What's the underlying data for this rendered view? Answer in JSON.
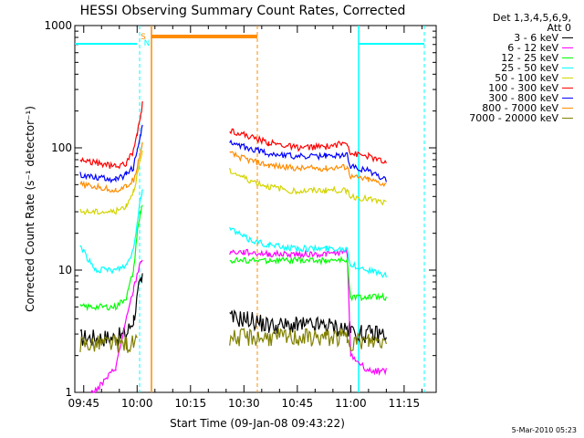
{
  "chart_data": {
    "type": "line",
    "title": "HESSI Observing Summary Count Rates, Corrected",
    "xlabel": "Start Time (09-Jan-08 09:43:22)",
    "ylabel": "Corrected Count Rate (s⁻¹ detector⁻¹)",
    "yscale": "log",
    "ylim": [
      1,
      1000
    ],
    "xlim_minutes": [
      -1,
      77
    ],
    "x_ticks": [
      {
        "label": "09:45",
        "m": 0
      },
      {
        "label": "10:00",
        "m": 15
      },
      {
        "label": "10:15",
        "m": 30
      },
      {
        "label": "10:30",
        "m": 45
      },
      {
        "label": "10:45",
        "m": 60
      },
      {
        "label": "11:00",
        "m": 75
      },
      {
        "label": "11:15",
        "m": 90
      }
    ],
    "y_ticks": [
      {
        "label": "1",
        "v": 1
      },
      {
        "label": "10",
        "v": 10
      },
      {
        "label": "100",
        "v": 100
      },
      {
        "label": "1000",
        "v": 1000
      }
    ],
    "legend_title": [
      "Det 1,3,4,5,6,9,",
      "Att 0"
    ],
    "series": [
      {
        "name": "3 - 6 keV",
        "color": "#000000",
        "points": [
          [
            -1,
            2.8
          ],
          [
            9,
            2.8
          ],
          [
            12,
            3
          ],
          [
            14,
            4
          ],
          [
            15.5,
            7
          ],
          [
            16,
            8
          ],
          [
            16.5,
            8
          ]
        ],
        "points2": [
          [
            41,
            4
          ],
          [
            46,
            4
          ],
          [
            52,
            3.5
          ],
          [
            60,
            3.5
          ],
          [
            68,
            3.5
          ],
          [
            74,
            3.3
          ],
          [
            75,
            3.2
          ],
          [
            78,
            3
          ],
          [
            85,
            3
          ]
        ]
      },
      {
        "name": "6 - 12 keV",
        "color": "#ff00ff",
        "points": [
          [
            2,
            1
          ],
          [
            3,
            1
          ],
          [
            9,
            1.6
          ],
          [
            12,
            4
          ],
          [
            14,
            7
          ],
          [
            16,
            12
          ],
          [
            16.5,
            12
          ]
        ],
        "points2": [
          [
            41,
            14
          ],
          [
            45,
            14
          ],
          [
            52,
            13.5
          ],
          [
            60,
            13.5
          ],
          [
            68,
            13.5
          ],
          [
            74,
            14
          ],
          [
            75,
            2
          ],
          [
            80,
            1.5
          ],
          [
            85,
            1.5
          ]
        ]
      },
      {
        "name": "12 - 25 keV",
        "color": "#00ff00",
        "points": [
          [
            -1,
            5
          ],
          [
            9,
            5
          ],
          [
            12,
            6
          ],
          [
            14,
            10
          ],
          [
            15,
            20
          ],
          [
            16,
            30
          ],
          [
            16.5,
            35
          ]
        ],
        "points2": [
          [
            41,
            12
          ],
          [
            46,
            12
          ],
          [
            52,
            12
          ],
          [
            60,
            12
          ],
          [
            68,
            12
          ],
          [
            74,
            12
          ],
          [
            75,
            6
          ],
          [
            80,
            6
          ],
          [
            85,
            6
          ]
        ]
      },
      {
        "name": "25 - 50 keV",
        "color": "#00ffff",
        "points": [
          [
            -1,
            16
          ],
          [
            3,
            10
          ],
          [
            9,
            10
          ],
          [
            12,
            11
          ],
          [
            14,
            15
          ],
          [
            15,
            25
          ],
          [
            16,
            40
          ],
          [
            16.5,
            45
          ]
        ],
        "points2": [
          [
            41,
            22
          ],
          [
            46,
            18
          ],
          [
            52,
            16
          ],
          [
            60,
            15
          ],
          [
            68,
            15
          ],
          [
            74,
            15
          ],
          [
            75,
            11
          ],
          [
            80,
            10
          ],
          [
            85,
            9
          ]
        ]
      },
      {
        "name": "50 - 100 keV",
        "color": "#d4d400",
        "points": [
          [
            -1,
            30
          ],
          [
            9,
            30
          ],
          [
            12,
            34
          ],
          [
            14,
            45
          ],
          [
            15,
            60
          ],
          [
            16,
            80
          ],
          [
            16.5,
            90
          ]
        ],
        "points2": [
          [
            41,
            65
          ],
          [
            46,
            55
          ],
          [
            52,
            48
          ],
          [
            60,
            44
          ],
          [
            68,
            45
          ],
          [
            74,
            45
          ],
          [
            75,
            40
          ],
          [
            80,
            38
          ],
          [
            85,
            35
          ]
        ]
      },
      {
        "name": "100 - 300 keV",
        "color": "#ff0000",
        "points": [
          [
            -1,
            80
          ],
          [
            9,
            70
          ],
          [
            12,
            75
          ],
          [
            14,
            95
          ],
          [
            15,
            130
          ],
          [
            16,
            180
          ],
          [
            16.5,
            230
          ]
        ],
        "points2": [
          [
            41,
            140
          ],
          [
            46,
            125
          ],
          [
            52,
            110
          ],
          [
            60,
            100
          ],
          [
            68,
            102
          ],
          [
            74,
            110
          ],
          [
            75,
            90
          ],
          [
            80,
            85
          ],
          [
            85,
            75
          ]
        ]
      },
      {
        "name": "300 - 800 keV",
        "color": "#0000ff",
        "points": [
          [
            -1,
            60
          ],
          [
            9,
            55
          ],
          [
            12,
            60
          ],
          [
            14,
            70
          ],
          [
            15,
            95
          ],
          [
            16,
            130
          ],
          [
            16.5,
            150
          ]
        ],
        "points2": [
          [
            41,
            110
          ],
          [
            46,
            100
          ],
          [
            52,
            90
          ],
          [
            60,
            85
          ],
          [
            68,
            85
          ],
          [
            74,
            88
          ],
          [
            75,
            70
          ],
          [
            80,
            65
          ],
          [
            85,
            55
          ]
        ]
      },
      {
        "name": "800 - 7000 keV",
        "color": "#ff8c00",
        "points": [
          [
            -1,
            50
          ],
          [
            9,
            45
          ],
          [
            12,
            48
          ],
          [
            14,
            55
          ],
          [
            15,
            70
          ],
          [
            16,
            95
          ],
          [
            16.5,
            110
          ]
        ],
        "points2": [
          [
            41,
            90
          ],
          [
            46,
            80
          ],
          [
            52,
            72
          ],
          [
            60,
            68
          ],
          [
            68,
            68
          ],
          [
            74,
            70
          ],
          [
            75,
            58
          ],
          [
            80,
            55
          ],
          [
            85,
            50
          ]
        ]
      },
      {
        "name": "7000 - 20000 keV",
        "color": "#808000",
        "points": [
          [
            -1,
            2.5
          ],
          [
            9,
            2.5
          ],
          [
            12,
            2.5
          ],
          [
            15,
            2.5
          ]
        ],
        "points2": [
          [
            41,
            2.8
          ],
          [
            46,
            2.8
          ],
          [
            52,
            2.8
          ],
          [
            60,
            2.8
          ],
          [
            68,
            2.8
          ],
          [
            74,
            2.8
          ],
          [
            75,
            2.6
          ],
          [
            80,
            2.6
          ],
          [
            85,
            2.6
          ]
        ]
      }
    ],
    "annotations": [
      {
        "text": "S",
        "m": 14,
        "color": "#ff8c00"
      },
      {
        "text": "N",
        "m": 14.7,
        "color": "#00ffff"
      }
    ]
  },
  "footer": "5-Mar-2010 05:23"
}
